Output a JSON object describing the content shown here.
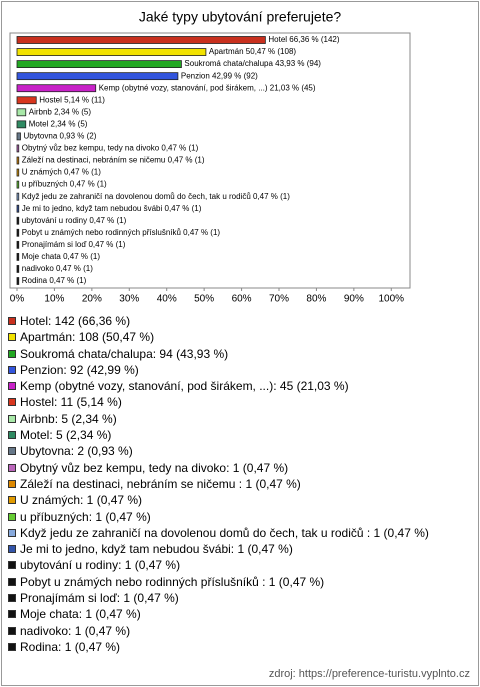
{
  "chart_data": {
    "type": "bar",
    "orientation": "horizontal",
    "title": "Jaké typy ubytování preferujete?",
    "values": [
      66.36,
      50.47,
      43.93,
      42.99,
      21.03,
      5.14,
      2.34,
      2.34,
      0.93,
      0.47,
      0.47,
      0.47,
      0.47,
      0.47,
      0.47,
      0.47,
      0.47,
      0.47,
      0.47,
      0.47,
      0.47
    ],
    "value_labels": [
      "Hotel 66,36 % (142)",
      "Apartmán 50,47 % (108)",
      "Soukromá chata/chalupa 43,93 % (94)",
      "Penzion 42,99 % (92)",
      "Kemp (obytné vozy, stanování, pod širákem, ...) 21,03 % (45)",
      "Hostel 5,14 % (11)",
      "Airbnb 2,34 % (5)",
      "Motel 2,34 % (5)",
      "Ubytovna 0,93 % (2)",
      "Obytný vůz bez kempu, tedy na divoko 0,47 % (1)",
      "Záleží na destinaci, nebráním se ničemu  0,47 % (1)",
      "U známých 0,47 % (1)",
      "u příbuzných 0,47 % (1)",
      "Když jedu ze zahraničí na dovolenou domů do čech, tak u rodičů  0,47 % (1)",
      "Je mi to jedno, když tam nebudou švábi 0,47 % (1)",
      "ubytování u rodiny 0,47 % (1)",
      "Pobyt u známých nebo rodinných příslušníků  0,47 % (1)",
      "Pronajímám si loď 0,47 % (1)",
      "Moje chata 0,47 % (1)",
      "nadivoko 0,47 % (1)",
      "Rodina 0,47 % (1)"
    ],
    "legend_labels": [
      "Hotel: 142 (66,36 %)",
      "Apartmán: 108 (50,47 %)",
      "Soukromá chata/chalupa: 94 (43,93 %)",
      "Penzion: 92 (42,99 %)",
      "Kemp (obytné vozy, stanování, pod širákem, ...): 45 (21,03 %)",
      "Hostel: 11 (5,14 %)",
      "Airbnb: 5 (2,34 %)",
      "Motel: 5 (2,34 %)",
      "Ubytovna: 2 (0,93 %)",
      "Obytný vůz bez kempu, tedy na divoko: 1 (0,47 %)",
      "Záleží na destinaci, nebráním se ničemu : 1 (0,47 %)",
      "U známých: 1 (0,47 %)",
      "u příbuzných: 1 (0,47 %)",
      "Když jedu ze zahraničí na dovolenou domů do čech, tak u rodičů : 1 (0,47 %)",
      "Je mi to jedno, když tam nebudou švábi: 1 (0,47 %)",
      "ubytování u rodiny: 1 (0,47 %)",
      "Pobyt u známých nebo rodinných příslušníků : 1 (0,47 %)",
      "Pronajímám si loď: 1 (0,47 %)",
      "Moje chata: 1 (0,47 %)",
      "nadivoko: 1 (0,47 %)",
      "Rodina: 1 (0,47 %)"
    ],
    "colors": [
      "#c8301e",
      "#f2e200",
      "#22a822",
      "#3355dd",
      "#c822c8",
      "#d8361e",
      "#a8e8a8",
      "#2f8a62",
      "#667788",
      "#bb66bb",
      "#dd8800",
      "#e09a00",
      "#66cc33",
      "#88aadd",
      "#3355aa",
      "#111111",
      "#111111",
      "#111111",
      "#111111",
      "#111111",
      "#111111"
    ],
    "xlim": [
      0,
      105
    ],
    "xticks": [
      {
        "value": 0,
        "label": "0%"
      },
      {
        "value": 10,
        "label": "10%"
      },
      {
        "value": 20,
        "label": "20%"
      },
      {
        "value": 30,
        "label": "30%"
      },
      {
        "value": 40,
        "label": "40%"
      },
      {
        "value": 50,
        "label": "50%"
      },
      {
        "value": 60,
        "label": "60%"
      },
      {
        "value": 70,
        "label": "70%"
      },
      {
        "value": 80,
        "label": "80%"
      },
      {
        "value": 90,
        "label": "90%"
      },
      {
        "value": 100,
        "label": "100%"
      }
    ],
    "grid": false,
    "source": "zdroj: https://preference-turistu.vyplnto.cz"
  }
}
